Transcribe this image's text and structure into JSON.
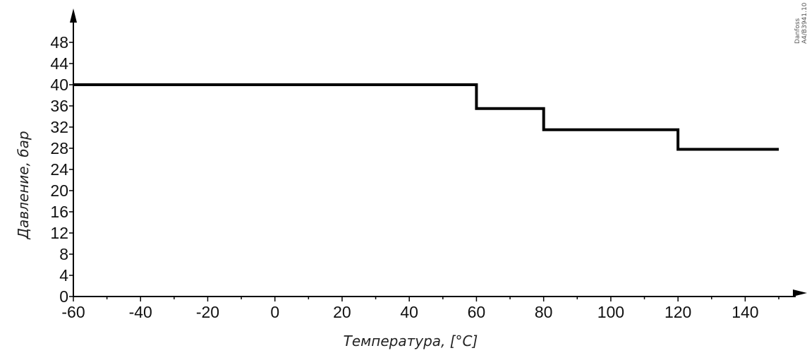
{
  "chart_data": {
    "type": "line",
    "xlabel": "Температура, [°C]",
    "ylabel": "Давление, бар",
    "xlim": [
      -60,
      150
    ],
    "ylim": [
      0,
      48
    ],
    "x_ticks": [
      -60,
      -40,
      -20,
      0,
      20,
      40,
      60,
      80,
      100,
      120,
      140
    ],
    "y_ticks": [
      0,
      4,
      8,
      12,
      16,
      20,
      24,
      28,
      32,
      36,
      40,
      44,
      48
    ],
    "grid": false,
    "series": [
      {
        "step": true,
        "x": [
          -60,
          60,
          60,
          80,
          80,
          120,
          120,
          150
        ],
        "y": [
          40,
          40,
          35.5,
          35.5,
          31.5,
          31.5,
          27.8,
          27.8
        ]
      }
    ]
  },
  "watermark": {
    "line1": "Danfoss",
    "line2": "A4/B3941.10"
  },
  "colors": {
    "line": "#000000",
    "axis": "#000000"
  }
}
